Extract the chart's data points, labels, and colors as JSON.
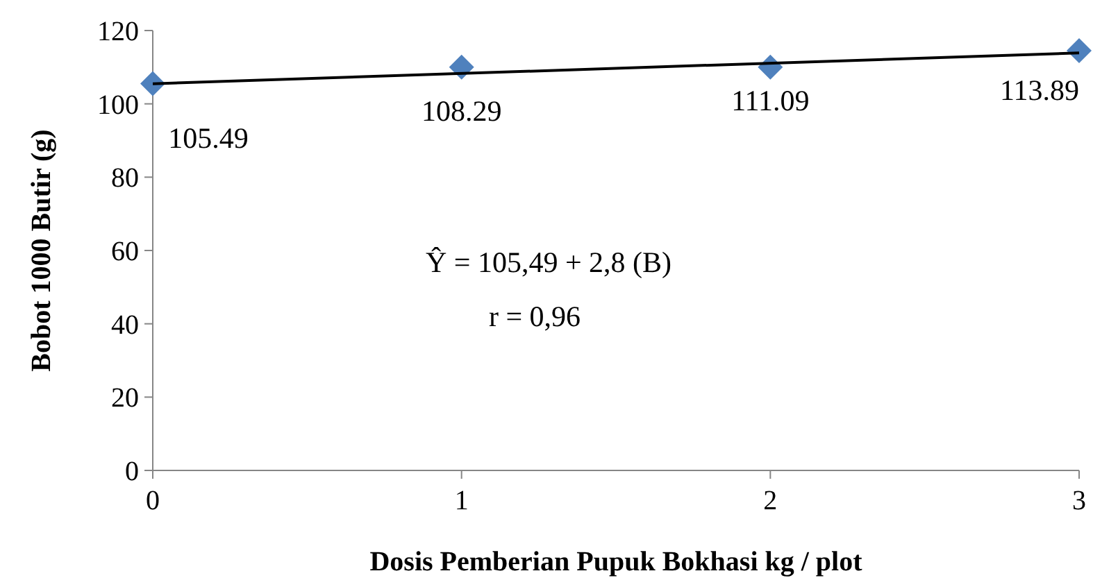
{
  "chart_data": {
    "type": "scatter",
    "xlabel": "Dosis Pemberian Pupuk Bokhasi kg / plot",
    "ylabel": "Bobot 1000 Butir (g)",
    "xlim": [
      0,
      3
    ],
    "xticks": [
      0,
      1,
      2,
      3
    ],
    "ylim": [
      0,
      120
    ],
    "yticks": [
      0,
      20,
      40,
      60,
      80,
      100,
      120
    ],
    "grid": false,
    "series": [
      {
        "color": "#4f81bd",
        "marker": "diamond",
        "x": [
          0,
          1,
          2,
          3
        ],
        "values": [
          105.5,
          110,
          110,
          114.5
        ]
      },
      {
        "type": "line",
        "color": "#000000",
        "marker": "none",
        "line_style": "solid",
        "x": [
          0,
          3
        ],
        "values": [
          105.49,
          113.89
        ]
      }
    ],
    "annotations": [
      {
        "text": "105.49",
        "x": 0,
        "y": 105.49
      },
      {
        "text": "108.29",
        "x": 1,
        "y": 108.29
      },
      {
        "text": "111.09",
        "x": 2,
        "y": 111.09
      },
      {
        "text": "113.89",
        "x": 3,
        "y": 113.89
      },
      "Ŷ =  105,49 + 2,8 (B)",
      "r = 0,96"
    ]
  }
}
